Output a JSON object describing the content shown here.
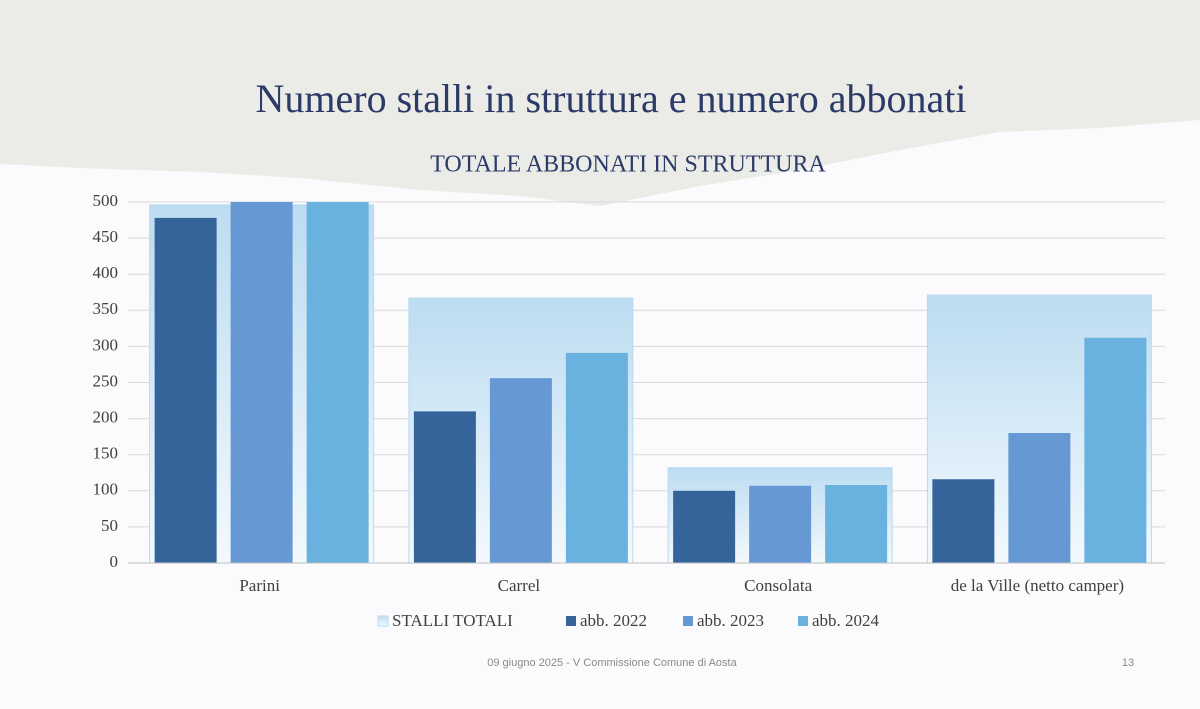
{
  "slide": {
    "title": "Numero stalli in struttura e numero abbonati",
    "footer": "09 giugno 2025 - V Commissione Comune di Aosta",
    "page_number": "13"
  },
  "chart_data": {
    "type": "bar",
    "title": "TOTALE ABBONATI IN STRUTTURA",
    "categories": [
      "Parini",
      "Carrel",
      "Consolata",
      "de la Ville (netto camper)"
    ],
    "series": [
      {
        "name": "STALLI TOTALI",
        "color": "#b9d9ef",
        "values": [
          496,
          367,
          132,
          371
        ]
      },
      {
        "name": "abb. 2022",
        "color": "#35649a",
        "values": [
          478,
          210,
          100,
          116
        ]
      },
      {
        "name": "abb. 2023",
        "color": "#6699d3",
        "values": [
          500,
          256,
          107,
          180
        ]
      },
      {
        "name": "abb. 2024",
        "color": "#69b1de",
        "values": [
          500,
          291,
          108,
          312
        ]
      }
    ],
    "ylim": [
      0,
      500
    ],
    "yticks": [
      0,
      50,
      100,
      150,
      200,
      250,
      300,
      350,
      400,
      450,
      500
    ],
    "grid": true,
    "legend": "bottom"
  }
}
